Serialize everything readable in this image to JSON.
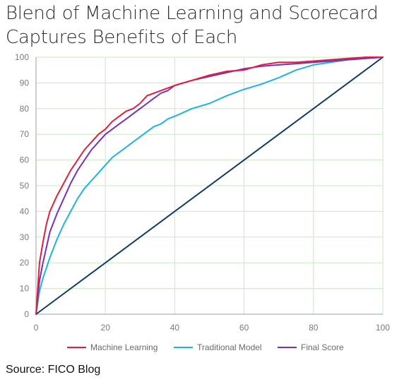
{
  "title": {
    "line1": "Blend of Machine Learning and Scorecard",
    "line2": "Captures Benefits of Each"
  },
  "source": "Source: FICO Blog",
  "chart_data": {
    "type": "line",
    "title": "Blend of Machine Learning and Scorecard Captures Benefits of Each",
    "xlim": [
      0,
      100
    ],
    "ylim": [
      0,
      100
    ],
    "x_ticks": [
      "0",
      "20",
      "40",
      "60",
      "80",
      "100"
    ],
    "y_ticks": [
      "0",
      "10",
      "20",
      "30",
      "40",
      "50",
      "60",
      "70",
      "80",
      "90",
      "100"
    ],
    "grid": true,
    "legend_position": "bottom",
    "series": [
      {
        "name": "Machine Learning",
        "color": "#e0203a",
        "x": [
          0,
          1,
          2,
          3,
          4,
          6,
          8,
          10,
          12,
          14,
          16,
          18,
          20,
          22,
          24,
          26,
          28,
          30,
          32,
          34,
          36,
          38,
          40,
          45,
          50,
          55,
          60,
          65,
          70,
          75,
          80,
          85,
          90,
          95,
          100
        ],
        "y": [
          0,
          20,
          28,
          35,
          40,
          46,
          51,
          56,
          60,
          64,
          67,
          70,
          72,
          75,
          77,
          79,
          80,
          82,
          85,
          86,
          87,
          88,
          89,
          91,
          93,
          94.5,
          95,
          97,
          98,
          98,
          98.5,
          99,
          99.5,
          100,
          100
        ]
      },
      {
        "name": "Traditional Model",
        "color": "#1fb3e0",
        "x": [
          0,
          1,
          2,
          3,
          4,
          6,
          8,
          10,
          12,
          14,
          16,
          18,
          20,
          22,
          24,
          26,
          28,
          30,
          32,
          34,
          36,
          38,
          40,
          45,
          50,
          55,
          60,
          65,
          70,
          75,
          80,
          85,
          90,
          95,
          100
        ],
        "y": [
          0,
          9,
          14,
          18,
          22,
          29,
          35,
          40,
          45,
          49,
          52,
          55,
          58,
          61,
          63,
          65,
          67,
          69,
          71,
          73,
          74,
          76,
          77,
          80,
          82,
          85,
          87.5,
          89.5,
          92,
          95,
          97,
          98,
          99,
          99.5,
          100
        ]
      },
      {
        "name": "Final Score",
        "color": "#7a2ec0",
        "x": [
          0,
          1,
          2,
          3,
          4,
          6,
          8,
          10,
          12,
          14,
          16,
          18,
          20,
          22,
          24,
          26,
          28,
          30,
          32,
          34,
          36,
          38,
          40,
          45,
          50,
          55,
          60,
          65,
          70,
          75,
          80,
          85,
          90,
          95,
          100
        ],
        "y": [
          0,
          13,
          20,
          26,
          32,
          39,
          45,
          51,
          56,
          60,
          64,
          67,
          70,
          72,
          74,
          76,
          78,
          80,
          82,
          84,
          86,
          87,
          89,
          91,
          92.5,
          94,
          95.5,
          96.5,
          97,
          97.5,
          98,
          98.5,
          99,
          99.5,
          100
        ]
      },
      {
        "name": "",
        "color": "#0f3b66",
        "x": [
          0,
          100
        ],
        "y": [
          0,
          100
        ]
      }
    ]
  }
}
